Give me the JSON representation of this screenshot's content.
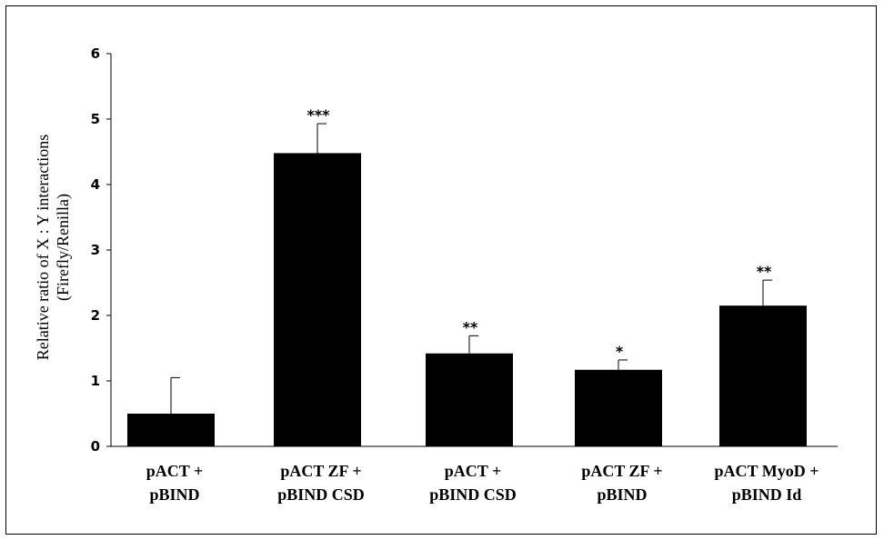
{
  "chart_data": {
    "type": "bar",
    "categories": [
      [
        "pACT +",
        "pBIND"
      ],
      [
        "pACT ZF +",
        "pBIND CSD"
      ],
      [
        "pACT +",
        "pBIND CSD"
      ],
      [
        "pACT  ZF +",
        "pBIND"
      ],
      [
        "pACT  MyoD +",
        "pBIND Id"
      ]
    ],
    "values": [
      0.5,
      4.48,
      1.42,
      1.17,
      2.15
    ],
    "error_upper": [
      0.55,
      0.45,
      0.27,
      0.15,
      0.39
    ],
    "significance": [
      "",
      "***",
      "**",
      "*",
      "**"
    ],
    "ylabel": [
      "Relative ratio of X : Y interactions",
      "(Firefly/Renilla)"
    ],
    "xlabel": "",
    "title": "",
    "ylim": [
      0,
      6
    ],
    "yticks": [
      0,
      1,
      2,
      3,
      4,
      5,
      6
    ],
    "grid": false,
    "bar_color": "#000000"
  }
}
